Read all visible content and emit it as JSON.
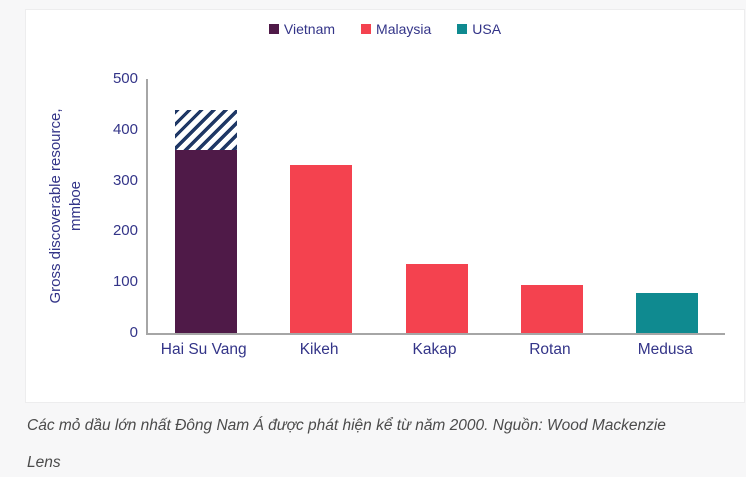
{
  "colors": {
    "text_navy": "#333488",
    "axis_gray": "#a6a6a6",
    "hatch_navy": "#1f3866",
    "caption_gray": "#4b4b4b",
    "card_background": "#ffffff",
    "page_background": "#f7f7f8"
  },
  "legend": [
    {
      "label": "Vietnam",
      "color": "#4f1a48"
    },
    {
      "label": "Malaysia",
      "color": "#f4424f"
    },
    {
      "label": "USA",
      "color": "#0f8a90"
    }
  ],
  "chart_data": {
    "type": "bar",
    "title": "",
    "xlabel": "",
    "ylabel": "Gross discoverable resource, mmboe",
    "ylabel_lines": [
      "Gross discoverable resource,",
      "mmboe"
    ],
    "ylim": [
      0,
      500
    ],
    "yticks": [
      0,
      100,
      200,
      300,
      400,
      500
    ],
    "grid": false,
    "legend_position": "top-center",
    "categories": [
      "Hai Su Vang",
      "Kikeh",
      "Kakap",
      "Rotan",
      "Medusa"
    ],
    "bars": [
      {
        "category": "Hai Su Vang",
        "country": "Vietnam",
        "value": 360,
        "hatched_top": 440
      },
      {
        "category": "Kikeh",
        "country": "Malaysia",
        "value": 330
      },
      {
        "category": "Kakap",
        "country": "Malaysia",
        "value": 135
      },
      {
        "category": "Rotan",
        "country": "Malaysia",
        "value": 95
      },
      {
        "category": "Medusa",
        "country": "USA",
        "value": 78
      }
    ]
  },
  "caption": "Các mỏ dầu lớn nhất Đông Nam Á được phát hiện kể từ năm 2000. Nguồn: Wood Mackenzie Lens"
}
